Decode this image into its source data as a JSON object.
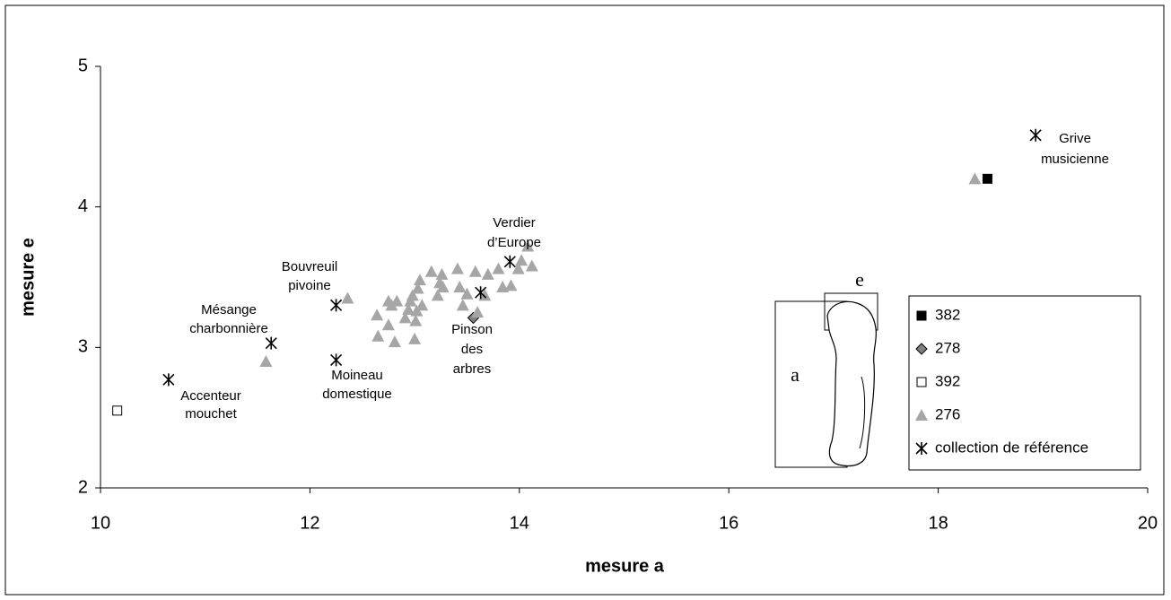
{
  "chart_data": {
    "type": "scatter",
    "xlabel": "mesure a",
    "ylabel": "mesure e",
    "xlim": [
      10,
      20
    ],
    "xticks": [
      10,
      12,
      14,
      16,
      18,
      20
    ],
    "ylim": [
      2,
      5
    ],
    "yticks": [
      2,
      3,
      4,
      5
    ],
    "grid": false,
    "legend": "right",
    "series": [
      {
        "name": "382",
        "color": "#000000",
        "marker": "square",
        "x": [
          18.47
        ],
        "y": [
          4.2
        ]
      },
      {
        "name": "278",
        "color": "#808080",
        "marker": "diamond",
        "x": [
          13.56
        ],
        "y": [
          3.21
        ]
      },
      {
        "name": "392",
        "color": "#ffffff",
        "marker": "square",
        "x": [
          10.16
        ],
        "y": [
          2.55
        ]
      },
      {
        "name": "276",
        "color": "#a6a6a6",
        "marker": "triangle",
        "x": [
          18.35,
          11.58,
          12.36,
          12.64,
          12.65,
          12.75,
          12.75,
          12.78,
          12.81,
          12.83,
          12.91,
          12.94,
          12.96,
          12.98,
          13.0,
          13.01,
          13.02,
          13.03,
          13.05,
          13.07,
          13.16,
          13.22,
          13.24,
          13.26,
          13.27,
          13.41,
          13.43,
          13.46,
          13.5,
          13.58,
          13.6,
          13.67,
          13.7,
          13.8,
          13.84,
          13.92,
          13.99,
          14.02,
          14.08,
          14.12
        ],
        "y": [
          4.2,
          2.9,
          3.35,
          3.23,
          3.08,
          3.16,
          3.33,
          3.3,
          3.04,
          3.33,
          3.21,
          3.27,
          3.33,
          3.37,
          3.06,
          3.19,
          3.26,
          3.42,
          3.48,
          3.3,
          3.54,
          3.37,
          3.46,
          3.52,
          3.43,
          3.56,
          3.43,
          3.3,
          3.38,
          3.54,
          3.25,
          3.37,
          3.52,
          3.56,
          3.43,
          3.44,
          3.56,
          3.62,
          3.72,
          3.58
        ]
      },
      {
        "name": "collection de référence",
        "color": "#000000",
        "marker": "asterisk",
        "x": [
          10.65,
          11.63,
          12.25,
          12.25,
          13.63,
          13.91,
          18.93
        ],
        "y": [
          2.77,
          3.03,
          3.3,
          2.91,
          3.39,
          3.61,
          4.51
        ]
      }
    ],
    "annotations": [
      [
        "Accenteur",
        "mouchet"
      ],
      [
        "Mésange",
        "charbonnière"
      ],
      [
        "Bouvreuil",
        "pivoine"
      ],
      [
        "Moineau",
        "domestique"
      ],
      [
        "Pinson",
        "des",
        "arbres"
      ],
      [
        "Verdier",
        "d’Europe"
      ],
      [
        "Grive",
        "musicienne"
      ]
    ],
    "figure_labels": [
      "a",
      "e"
    ]
  }
}
